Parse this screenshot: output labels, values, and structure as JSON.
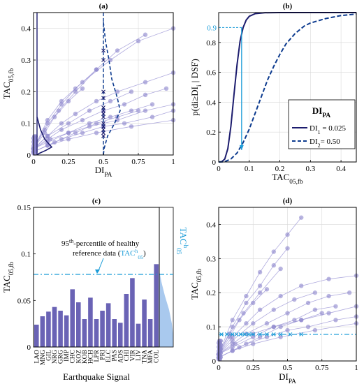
{
  "colors": {
    "scatter": "#8a84cc",
    "scatter_line": "#9b95d6",
    "navy": "#1c1c6e",
    "dark_blue": "#0d3b8f",
    "cyan": "#1b9cd8",
    "bar": "#6a63b5",
    "light_blue": "#a9c9ee"
  },
  "chart_data": [
    {
      "panel": "(a)",
      "type": "scatter",
      "xlabel": "DI",
      "xlabel_sub": "PA",
      "ylabel": "TAC",
      "ylabel_sub": "05,fb",
      "xlim": [
        0,
        1
      ],
      "ylim": [
        0,
        0.45
      ],
      "xticks": [
        "0",
        "0.25",
        "0.5",
        "0.75",
        "1"
      ],
      "yticks": [
        "0",
        "0.1",
        "0.2",
        "0.3",
        "0.4"
      ],
      "grid": true,
      "series": [
        {
          "x": [
            0,
            0.1,
            0.2,
            0.35,
            0.55,
            0.75,
            1.0
          ],
          "y": [
            0.02,
            0.11,
            0.17,
            0.23,
            0.3,
            0.36,
            0.4
          ]
        },
        {
          "x": [
            0,
            0.1,
            0.2,
            0.3,
            0.45,
            0.6,
            0.8
          ],
          "y": [
            0.02,
            0.1,
            0.16,
            0.21,
            0.27,
            0.33,
            0.38
          ]
        },
        {
          "x": [
            0,
            0.08,
            0.18,
            0.3,
            0.45
          ],
          "y": [
            0.02,
            0.08,
            0.14,
            0.2,
            0.27
          ]
        },
        {
          "x": [
            0,
            0.1,
            0.2,
            0.3,
            0.45,
            0.6,
            0.8,
            1.0
          ],
          "y": [
            0.02,
            0.06,
            0.1,
            0.13,
            0.17,
            0.2,
            0.23,
            0.26
          ]
        },
        {
          "x": [
            0,
            0.1,
            0.25,
            0.4,
            0.55,
            0.7
          ],
          "y": [
            0.02,
            0.06,
            0.1,
            0.14,
            0.17,
            0.2
          ]
        },
        {
          "x": [
            0,
            0.1,
            0.2,
            0.35,
            0.5,
            0.65,
            0.8,
            0.95
          ],
          "y": [
            0.02,
            0.05,
            0.08,
            0.11,
            0.14,
            0.16,
            0.19,
            0.21
          ]
        },
        {
          "x": [
            0,
            0.1,
            0.25,
            0.4,
            0.6,
            0.8,
            1.0
          ],
          "y": [
            0.02,
            0.04,
            0.07,
            0.09,
            0.11,
            0.14,
            0.16
          ]
        },
        {
          "x": [
            0,
            0.1,
            0.2,
            0.35,
            0.5,
            0.65,
            0.85,
            1.0
          ],
          "y": [
            0.01,
            0.03,
            0.05,
            0.07,
            0.09,
            0.1,
            0.12,
            0.14
          ]
        },
        {
          "x": [
            0,
            0.1,
            0.25,
            0.45,
            0.7,
            1.0
          ],
          "y": [
            0.01,
            0.03,
            0.05,
            0.07,
            0.09,
            0.11
          ]
        },
        {
          "x": [
            0,
            0.08,
            0.15,
            0.25,
            0.35
          ],
          "y": [
            0.02,
            0.07,
            0.12,
            0.17,
            0.21
          ]
        },
        {
          "x": [
            0,
            0.15,
            0.3,
            0.45,
            0.6,
            0.75
          ],
          "y": [
            0.01,
            0.04,
            0.07,
            0.1,
            0.12,
            0.14
          ]
        },
        {
          "x": [
            0,
            0.12,
            0.25,
            0.4,
            0.55,
            0.7,
            0.85
          ],
          "y": [
            0.02,
            0.05,
            0.07,
            0.1,
            0.12,
            0.14,
            0.16
          ]
        }
      ],
      "cluster_x_marker_values": [
        0.33,
        0.3,
        0.2,
        0.18,
        0.15,
        0.14,
        0.13,
        0.12,
        0.1,
        0.09,
        0.08,
        0.07,
        0.06
      ],
      "x_marker_at": 0.5
    },
    {
      "panel": "(b)",
      "type": "line",
      "xlabel": "TAC",
      "xlabel_sub": "05,fb",
      "ylabel": "p(di≥DI",
      "ylabel_sub": "i",
      "ylabel_tail": " | DSF)",
      "xlim": [
        0,
        0.45
      ],
      "ylim": [
        0,
        1
      ],
      "xticks": [
        "0",
        "0.1",
        "0.2",
        "0.3",
        "0.4"
      ],
      "yticks": [
        "0",
        "0.2",
        "0.4",
        "0.6",
        "0.8"
      ],
      "grid": true,
      "threshold_label": "0.9",
      "threshold_y": 0.9,
      "threshold_x": 0.075,
      "series": [
        {
          "name": "DI",
          "name_sub": "1",
          "name_tail": " = 0.025",
          "style": "solid",
          "x": [
            0,
            0.01,
            0.02,
            0.03,
            0.04,
            0.05,
            0.06,
            0.07,
            0.08,
            0.09,
            0.1,
            0.12,
            0.15,
            0.2,
            0.45
          ],
          "y": [
            0,
            0.002,
            0.02,
            0.09,
            0.24,
            0.45,
            0.65,
            0.81,
            0.9,
            0.95,
            0.975,
            0.993,
            0.999,
            1,
            1
          ]
        },
        {
          "name": "DI",
          "name_sub": "2",
          "name_tail": "= 0.50",
          "style": "dashed",
          "x": [
            0,
            0.02,
            0.04,
            0.06,
            0.08,
            0.1,
            0.12,
            0.14,
            0.16,
            0.18,
            0.2,
            0.22,
            0.25,
            0.28,
            0.3,
            0.35,
            0.4,
            0.45
          ],
          "y": [
            0,
            0.002,
            0.02,
            0.06,
            0.13,
            0.22,
            0.33,
            0.44,
            0.55,
            0.64,
            0.72,
            0.79,
            0.86,
            0.91,
            0.93,
            0.96,
            0.98,
            0.99
          ]
        }
      ],
      "legend_title": "DI",
      "legend_title_sub": "PA"
    },
    {
      "panel": "(c)",
      "type": "bar",
      "xlabel": "Earthquake Signal",
      "ylabel": "TAC",
      "ylabel_sub": "05,fb",
      "ylim": [
        0,
        0.15
      ],
      "yticks": [
        "0",
        "0.05",
        "0.1",
        "0.15"
      ],
      "categories": [
        "LAO",
        "MNG",
        "GIL",
        "NRG",
        "GRG",
        "IMP",
        "CHC",
        "KOZ",
        "KOB",
        "HCH",
        "LPR",
        "PRI",
        "ELC",
        "PAS",
        "ADS",
        "CHI",
        "VIR",
        "LIV",
        "TNA",
        "MFA",
        "COL"
      ],
      "values": [
        0.024,
        0.033,
        0.038,
        0.043,
        0.039,
        0.034,
        0.062,
        0.048,
        0.03,
        0.053,
        0.03,
        0.039,
        0.047,
        0.03,
        0.026,
        0.057,
        0.074,
        0.025,
        0.051,
        0.03,
        0.089
      ],
      "threshold": 0.078,
      "annotation_line1_a": "95",
      "annotation_line1_sup": "th",
      "annotation_line1_b": "-percentile of healthy",
      "annotation_line2_a": "reference data (",
      "annotation_line2_tac": "TAC",
      "annotation_line2_sup": "h",
      "annotation_line2_sub": "05",
      "annotation_line2_b": ")",
      "side_label": "TAC",
      "side_label_sup": "h",
      "side_label_sub": "05"
    },
    {
      "panel": "(d)",
      "type": "scatter",
      "xlabel": "DI",
      "xlabel_sub": "PA",
      "ylabel": "TAC",
      "ylabel_sub": "05,fb",
      "xlim": [
        0,
        1
      ],
      "ylim": [
        0,
        0.45
      ],
      "xticks": [
        "0",
        "0.25",
        "0.5",
        "0.75",
        "1"
      ],
      "yticks": [
        "0",
        "0.1",
        "0.2",
        "0.3",
        "0.4"
      ],
      "grid": true,
      "threshold": 0.078,
      "threshold_markers_x": [
        0.02,
        0.06,
        0.1,
        0.13,
        0.16,
        0.19,
        0.22,
        0.25,
        0.3,
        0.35,
        0.4,
        0.45,
        0.52,
        0.6
      ],
      "series": [
        {
          "x": [
            0,
            0.1,
            0.2,
            0.3,
            0.4,
            0.5,
            0.6
          ],
          "y": [
            0.02,
            0.12,
            0.19,
            0.26,
            0.32,
            0.37,
            0.42
          ]
        },
        {
          "x": [
            0,
            0.1,
            0.2,
            0.3,
            0.4,
            0.5
          ],
          "y": [
            0.02,
            0.1,
            0.17,
            0.22,
            0.28,
            0.33
          ]
        },
        {
          "x": [
            0,
            0.08,
            0.18,
            0.3,
            0.45
          ],
          "y": [
            0.02,
            0.08,
            0.14,
            0.2,
            0.27
          ]
        },
        {
          "x": [
            0,
            0.1,
            0.2,
            0.3,
            0.45,
            0.6,
            0.8,
            1.0
          ],
          "y": [
            0.02,
            0.07,
            0.11,
            0.15,
            0.19,
            0.22,
            0.24,
            0.25
          ]
        },
        {
          "x": [
            0,
            0.1,
            0.25,
            0.4,
            0.55,
            0.7
          ],
          "y": [
            0.02,
            0.06,
            0.11,
            0.15,
            0.18,
            0.2
          ]
        },
        {
          "x": [
            0,
            0.1,
            0.2,
            0.35,
            0.5,
            0.65,
            0.8,
            0.95
          ],
          "y": [
            0.02,
            0.05,
            0.08,
            0.11,
            0.14,
            0.17,
            0.19,
            0.2
          ]
        },
        {
          "x": [
            0,
            0.1,
            0.25,
            0.4,
            0.6,
            0.8,
            1.0
          ],
          "y": [
            0.02,
            0.04,
            0.07,
            0.1,
            0.12,
            0.14,
            0.16
          ]
        },
        {
          "x": [
            0,
            0.1,
            0.2,
            0.35,
            0.5,
            0.65,
            0.85,
            1.0
          ],
          "y": [
            0.01,
            0.03,
            0.05,
            0.07,
            0.09,
            0.1,
            0.12,
            0.13
          ]
        },
        {
          "x": [
            0,
            0.1,
            0.25,
            0.45,
            0.7,
            1.0
          ],
          "y": [
            0.01,
            0.03,
            0.05,
            0.07,
            0.09,
            0.11
          ]
        },
        {
          "x": [
            0,
            0.08,
            0.15,
            0.25,
            0.35
          ],
          "y": [
            0.02,
            0.07,
            0.12,
            0.17,
            0.21
          ]
        },
        {
          "x": [
            0,
            0.15,
            0.3,
            0.45,
            0.6,
            0.75
          ],
          "y": [
            0.01,
            0.04,
            0.07,
            0.1,
            0.12,
            0.14
          ]
        },
        {
          "x": [
            0,
            0.12,
            0.25,
            0.4,
            0.55,
            0.7,
            0.85
          ],
          "y": [
            0.02,
            0.05,
            0.08,
            0.1,
            0.12,
            0.15,
            0.16
          ]
        }
      ]
    }
  ]
}
